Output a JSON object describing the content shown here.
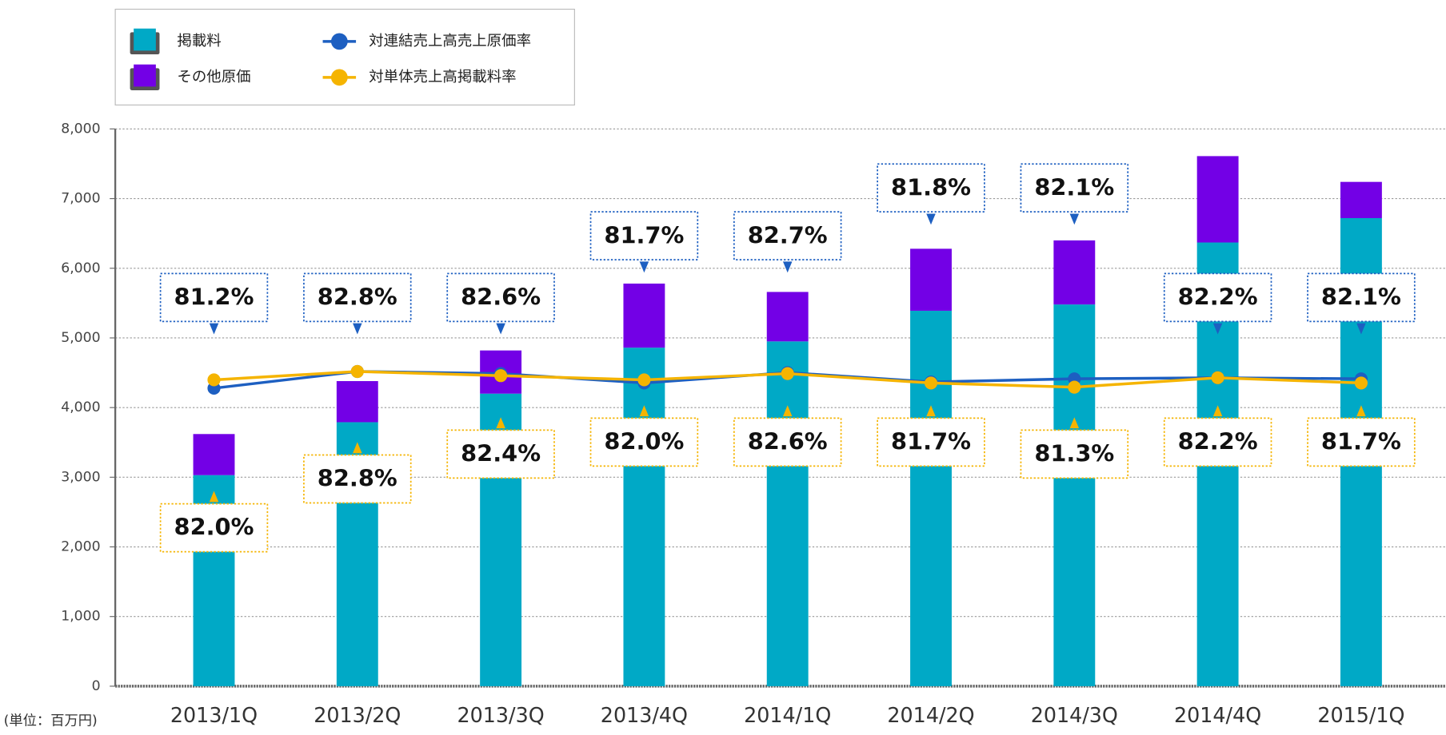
{
  "chart_data": {
    "type": "bar-line",
    "categories": [
      "2013/1Q",
      "2013/2Q",
      "2013/3Q",
      "2013/4Q",
      "2014/1Q",
      "2014/2Q",
      "2014/3Q",
      "2014/4Q",
      "2015/1Q"
    ],
    "series": [
      {
        "name": "掲載料",
        "type": "bar",
        "color": "#00a9c6",
        "values": [
          3030,
          3790,
          4200,
          4860,
          4950,
          5390,
          5480,
          6370,
          6720
        ]
      },
      {
        "name": "その他原価",
        "type": "bar",
        "color": "#7300e6",
        "values": [
          590,
          590,
          620,
          920,
          710,
          890,
          920,
          1240,
          520
        ]
      },
      {
        "name": "対連結売上高売上原価率",
        "type": "line",
        "axis": "y2",
        "color": "#1d5fc1",
        "values": [
          81.2,
          82.8,
          82.6,
          81.7,
          82.7,
          81.8,
          82.1,
          82.2,
          82.1
        ],
        "value_labels": [
          "81.2%",
          "82.8%",
          "82.6%",
          "81.7%",
          "82.7%",
          "81.8%",
          "82.1%",
          "82.2%",
          "82.1%"
        ]
      },
      {
        "name": "対単体売上高掲載料率",
        "type": "line",
        "axis": "y2",
        "color": "#f5b400",
        "values": [
          82.0,
          82.8,
          82.4,
          82.0,
          82.6,
          81.7,
          81.3,
          82.2,
          81.7
        ],
        "value_labels": [
          "82.0%",
          "82.8%",
          "82.4%",
          "82.0%",
          "82.6%",
          "81.7%",
          "81.3%",
          "82.2%",
          "81.7%"
        ]
      }
    ],
    "stacked": true,
    "ylim": [
      0,
      8000
    ],
    "yticks": [
      0,
      {
        "value": 1000,
        "label": "1,000"
      },
      {
        "value": 2000,
        "label": "2,000"
      },
      {
        "value": 3000,
        "label": "3,000"
      },
      {
        "value": 4000,
        "label": "4,000"
      },
      {
        "value": 5000,
        "label": "5,000"
      },
      {
        "value": 6000,
        "label": "6,000"
      },
      {
        "value": 7000,
        "label": "7,000"
      },
      {
        "value": 8000,
        "label": "8,000"
      }
    ],
    "y2lim": [
      52.7,
      106
    ],
    "grid": true,
    "legend": "top-left",
    "unit_label": "(単位：百万円)"
  }
}
